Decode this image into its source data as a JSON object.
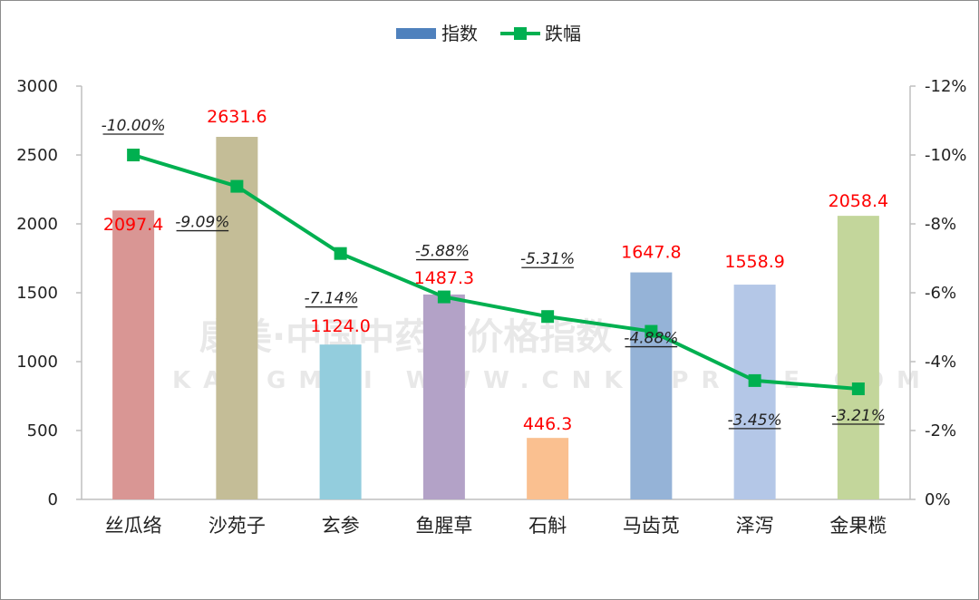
{
  "chart_data": {
    "type": "bar+line",
    "categories": [
      "丝瓜络",
      "沙苑子",
      "玄参",
      "鱼腥草",
      "石斛",
      "马齿苋",
      "泽泻",
      "金果榄"
    ],
    "series": [
      {
        "name": "指数",
        "type": "bar",
        "axis": "left",
        "values": [
          2097.4,
          2631.6,
          1124.0,
          1487.3,
          446.3,
          1647.8,
          1558.9,
          2058.4
        ],
        "labels": [
          "2097.4",
          "2631.6",
          "1124.0",
          "1487.3",
          "446.3",
          "1647.8",
          "1558.9",
          "2058.4"
        ]
      },
      {
        "name": "跌幅",
        "type": "line",
        "axis": "right",
        "values": [
          -10.0,
          -9.09,
          -7.14,
          -5.88,
          -5.31,
          -4.88,
          -3.45,
          -3.21
        ],
        "labels": [
          "-10.00%",
          "-9.09%",
          "-7.14%",
          "-5.88%",
          "-5.31%",
          "-4.88%",
          "-3.45%",
          "-3.21%"
        ]
      }
    ],
    "y_left": {
      "ticks": [
        "0",
        "500",
        "1000",
        "1500",
        "2000",
        "2500",
        "3000"
      ],
      "ylim": [
        0,
        3000
      ]
    },
    "y_right": {
      "ticks": [
        "0%",
        "-2%",
        "-4%",
        "-6%",
        "-8%",
        "-10%",
        "-12%"
      ],
      "ylim": [
        0,
        -12
      ],
      "reversed": true
    },
    "legend_position": "top-center",
    "grid": false,
    "bar_colors": [
      "#d99694",
      "#c4bd97",
      "#93cddd",
      "#b3a2c7",
      "#fac090",
      "#95b3d7",
      "#b4c7e7",
      "#c3d69b"
    ],
    "line_color": "#00b050",
    "value_label_color": "#ff0000",
    "legend_bar_color": "#4f81bd"
  },
  "watermark": {
    "line1": "康美·中国中药材价格指数",
    "line2": "KANGMEI WWW.CNKMPRICE.COM"
  }
}
